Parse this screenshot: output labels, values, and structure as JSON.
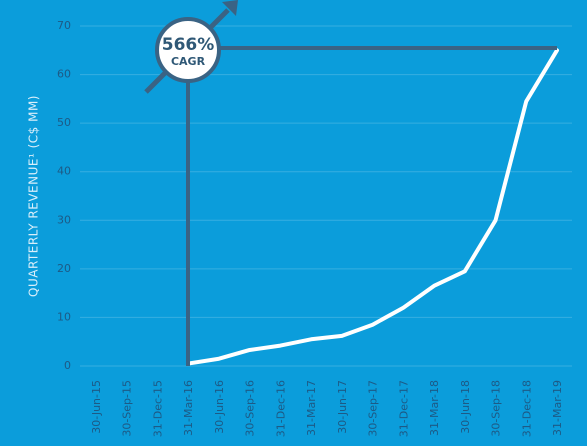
{
  "chart_data": {
    "type": "line",
    "y_label": "QUARTERLY REVENUE¹ (C$ MM)",
    "categories": [
      "30-Jun-15",
      "30-Sep-15",
      "31-Dec-15",
      "31-Mar-16",
      "30-Jun-16",
      "30-Sep-16",
      "31-Dec-16",
      "31-Mar-17",
      "30-Jun-17",
      "30-Sep-17",
      "31-Dec-17",
      "31-Mar-18",
      "30-Jun-18",
      "30-Sep-18",
      "31-Dec-18",
      "31-Mar-19"
    ],
    "series": [
      {
        "name": "Quarterly revenue",
        "color": "#ffffff",
        "values": [
          null,
          null,
          null,
          0.5,
          1.5,
          3.3,
          4.2,
          5.5,
          6.2,
          8.5,
          12,
          16.5,
          19.5,
          30,
          54.5,
          65
        ]
      }
    ],
    "ylim": [
      0,
      70
    ],
    "yticks": [
      0,
      10,
      20,
      30,
      40,
      50,
      60,
      70
    ],
    "grid": true,
    "annotation": {
      "value": "566%",
      "label": "CAGR"
    }
  }
}
